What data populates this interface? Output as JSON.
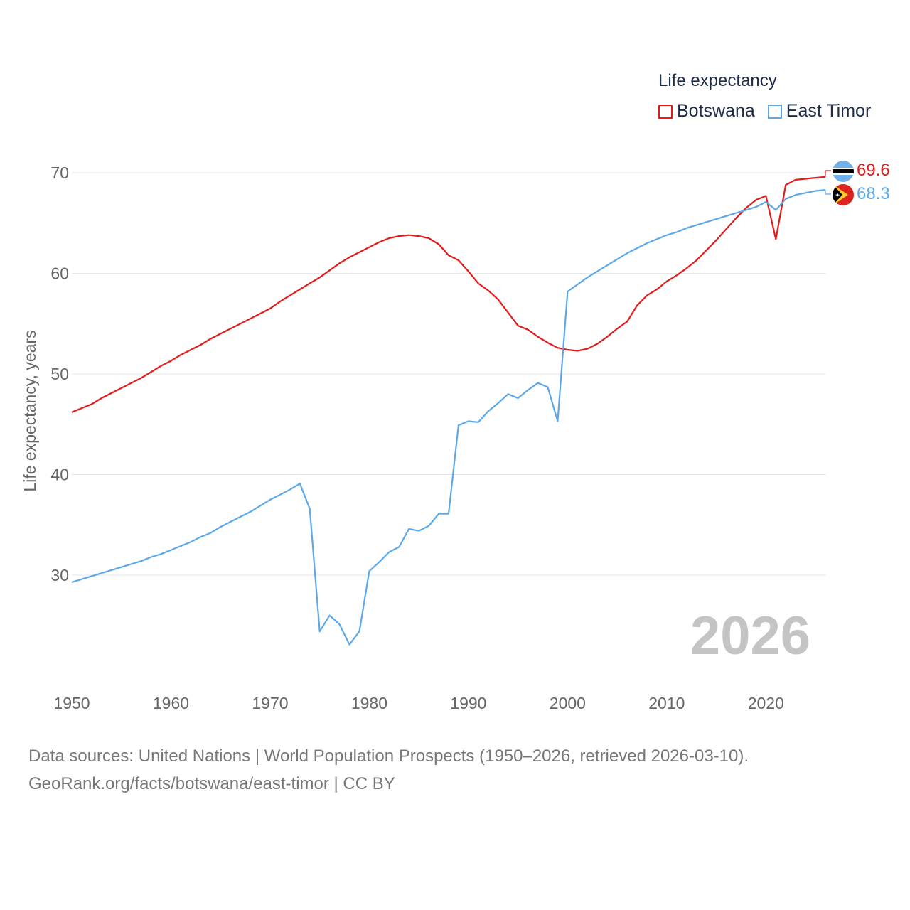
{
  "legend": {
    "title": "Life expectancy",
    "items": [
      {
        "label": "Botswana",
        "color": "#e31b1b"
      },
      {
        "label": "East Timor",
        "color": "#5da8e8"
      }
    ]
  },
  "source": {
    "line1": "Data sources: United Nations | World Population Prospects (1950–2026, retrieved 2026-03-10).",
    "line2": "GeoRank.org/facts/botswana/east-timor | CC BY"
  },
  "chart_data": {
    "type": "line",
    "title": "Life expectancy",
    "xlabel": "",
    "ylabel": "Life expectancy, years",
    "current_year": "2026",
    "xlim": [
      1950,
      2026
    ],
    "ylim": [
      20,
      73
    ],
    "x_ticks": [
      1950,
      1960,
      1970,
      1980,
      1990,
      2000,
      2010,
      2020
    ],
    "y_ticks": [
      30,
      40,
      50,
      60,
      70
    ],
    "grid": true,
    "legend_position": "top-right",
    "x": [
      1950,
      1951,
      1952,
      1953,
      1954,
      1955,
      1956,
      1957,
      1958,
      1959,
      1960,
      1961,
      1962,
      1963,
      1964,
      1965,
      1966,
      1967,
      1968,
      1969,
      1970,
      1971,
      1972,
      1973,
      1974,
      1975,
      1976,
      1977,
      1978,
      1979,
      1980,
      1981,
      1982,
      1983,
      1984,
      1985,
      1986,
      1987,
      1988,
      1989,
      1990,
      1991,
      1992,
      1993,
      1994,
      1995,
      1996,
      1997,
      1998,
      1999,
      2000,
      2001,
      2002,
      2003,
      2004,
      2005,
      2006,
      2007,
      2008,
      2009,
      2010,
      2011,
      2012,
      2013,
      2014,
      2015,
      2016,
      2017,
      2018,
      2019,
      2020,
      2021,
      2022,
      2023,
      2024,
      2025,
      2026
    ],
    "series": [
      {
        "name": "Botswana",
        "color": "#e31b1b",
        "end_label": "69.6",
        "values": [
          46.2,
          46.6,
          47.0,
          47.6,
          48.1,
          48.6,
          49.1,
          49.6,
          50.2,
          50.8,
          51.3,
          51.9,
          52.4,
          52.9,
          53.5,
          54.0,
          54.5,
          55.0,
          55.5,
          56.0,
          56.5,
          57.2,
          57.8,
          58.4,
          59.0,
          59.6,
          60.3,
          61.0,
          61.6,
          62.1,
          62.6,
          63.1,
          63.5,
          63.7,
          63.8,
          63.7,
          63.5,
          62.9,
          61.8,
          61.3,
          60.2,
          59.0,
          58.3,
          57.4,
          56.1,
          54.8,
          54.4,
          53.7,
          53.1,
          52.6,
          52.4,
          52.3,
          52.5,
          53.0,
          53.7,
          54.5,
          55.2,
          56.8,
          57.8,
          58.4,
          59.2,
          59.8,
          60.5,
          61.3,
          62.3,
          63.3,
          64.4,
          65.5,
          66.5,
          67.3,
          67.7,
          63.4,
          68.8,
          69.3,
          69.4,
          69.5,
          69.6
        ]
      },
      {
        "name": "East Timor",
        "color": "#5da8e8",
        "end_label": "68.3",
        "values": [
          29.3,
          29.6,
          29.9,
          30.2,
          30.5,
          30.8,
          31.1,
          31.4,
          31.8,
          32.1,
          32.5,
          32.9,
          33.3,
          33.8,
          34.2,
          34.8,
          35.3,
          35.8,
          36.3,
          36.9,
          37.5,
          38.0,
          38.5,
          39.1,
          36.6,
          24.4,
          26.0,
          25.1,
          23.1,
          24.4,
          30.4,
          31.3,
          32.3,
          32.8,
          34.6,
          34.4,
          34.9,
          36.1,
          36.1,
          44.9,
          45.3,
          45.2,
          46.3,
          47.1,
          48.0,
          47.6,
          48.4,
          49.1,
          48.7,
          45.3,
          58.2,
          58.9,
          59.6,
          60.2,
          60.8,
          61.4,
          62.0,
          62.5,
          63.0,
          63.4,
          63.8,
          64.1,
          64.5,
          64.8,
          65.1,
          65.4,
          65.7,
          66.0,
          66.3,
          66.6,
          67.1,
          66.3,
          67.4,
          67.8,
          68.0,
          68.2,
          68.3
        ]
      }
    ]
  }
}
